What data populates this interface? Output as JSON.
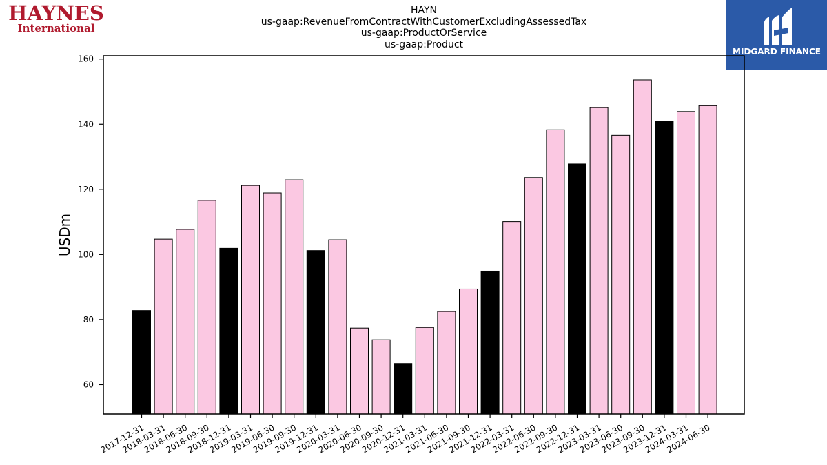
{
  "logos": {
    "company": {
      "name": "HAYNES",
      "subtitle": "International",
      "color": "#b01a2e"
    },
    "publisher": {
      "name": "MIDGARD FINANCE",
      "background": "#2b5aa8"
    }
  },
  "chart_data": {
    "type": "bar",
    "title": [
      "HAYN",
      "us-gaap:RevenueFromContractWithCustomerExcludingAssessedTax",
      "us-gaap:ProductOrService",
      "us-gaap:Product"
    ],
    "xlabel": "",
    "ylabel": "USDm",
    "ylim": [
      51,
      161
    ],
    "yticks": [
      60,
      80,
      100,
      120,
      140,
      160
    ],
    "categories": [
      "2017-12-31",
      "2018-03-31",
      "2018-06-30",
      "2018-09-30",
      "2018-12-31",
      "2019-03-31",
      "2019-06-30",
      "2019-09-30",
      "2019-12-31",
      "2020-03-31",
      "2020-06-30",
      "2020-09-30",
      "2020-12-31",
      "2021-03-31",
      "2021-06-30",
      "2021-09-30",
      "2021-12-31",
      "2022-03-31",
      "2022-06-30",
      "2022-09-30",
      "2022-12-31",
      "2023-03-31",
      "2023-06-30",
      "2023-09-30",
      "2023-12-31",
      "2024-03-31",
      "2024-06-30"
    ],
    "values": [
      82.8,
      104.7,
      107.7,
      116.6,
      101.9,
      121.2,
      118.9,
      122.9,
      101.2,
      104.5,
      77.4,
      73.8,
      66.5,
      77.6,
      82.5,
      89.4,
      94.9,
      110.1,
      123.6,
      138.3,
      127.8,
      145.1,
      136.6,
      153.6,
      141.0,
      143.9,
      145.7
    ],
    "highlight_color": "#000000",
    "bar_color": "#fbc8e2",
    "grid": false
  }
}
